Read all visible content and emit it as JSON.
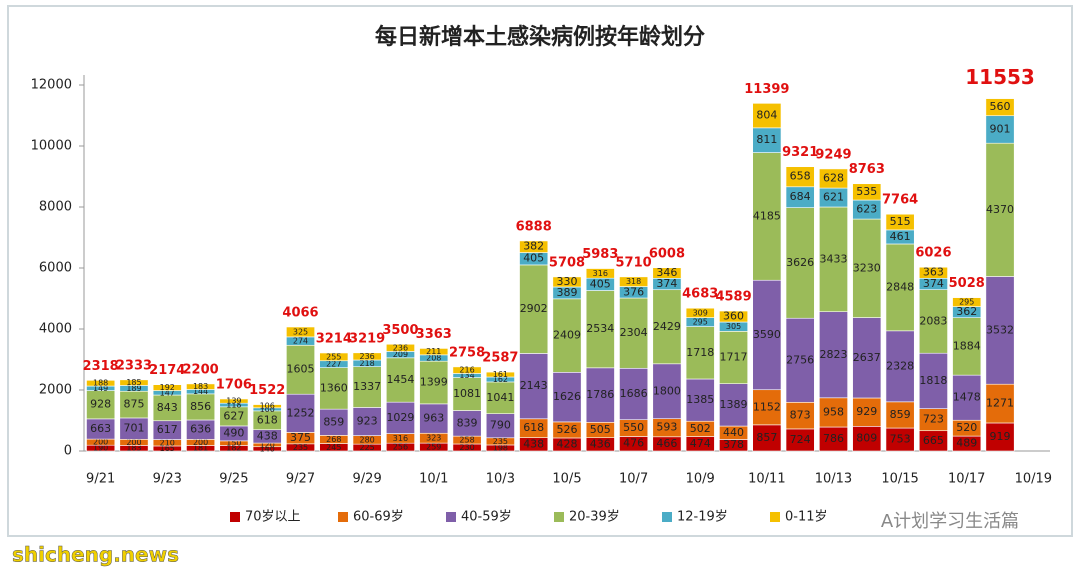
{
  "chart_data": {
    "type": "stacked_bar",
    "title": "每日新增本土感染病例按年龄划分",
    "categories": [
      "9/21",
      null,
      "9/23",
      null,
      "9/25",
      null,
      "9/27",
      null,
      "9/29",
      null,
      "10/1",
      null,
      "10/3",
      null,
      "10/5",
      null,
      "10/7",
      null,
      "10/9",
      null,
      "10/11",
      null,
      "10/13",
      null,
      "10/15",
      null,
      "10/17",
      null,
      "10/19"
    ],
    "series": [
      {
        "name": "70岁以上",
        "color": "#c00000",
        "values": [
          190,
          183,
          165,
          181,
          182,
          140,
          235,
          245,
          225,
          256,
          259,
          230,
          198,
          438,
          428,
          436,
          476,
          466,
          474,
          378,
          857,
          724,
          786,
          809,
          753,
          665,
          489,
          919,
          null
        ]
      },
      {
        "name": "60-69岁",
        "color": "#e46c0a",
        "values": [
          200,
          200,
          210,
          200,
          150,
          120,
          375,
          268,
          280,
          316,
          323,
          258,
          235,
          618,
          526,
          505,
          550,
          593,
          502,
          440,
          1152,
          873,
          958,
          929,
          859,
          723,
          520,
          1271,
          null
        ]
      },
      {
        "name": "40-59岁",
        "color": "#7f5fa9",
        "values": [
          663,
          701,
          617,
          636,
          490,
          438,
          1252,
          859,
          923,
          1029,
          963,
          839,
          790,
          2143,
          1626,
          1786,
          1686,
          1800,
          1385,
          1389,
          3590,
          2756,
          2823,
          2637,
          2328,
          1818,
          1478,
          3532,
          null
        ]
      },
      {
        "name": "20-39岁",
        "color": "#9bbb59",
        "values": [
          928,
          875,
          843,
          856,
          627,
          618,
          1605,
          1360,
          1337,
          1454,
          1399,
          1081,
          1041,
          2902,
          2409,
          2534,
          2304,
          2429,
          1718,
          1717,
          4185,
          3626,
          3433,
          3230,
          2848,
          2083,
          1884,
          4370,
          null
        ]
      },
      {
        "name": "12-19岁",
        "color": "#4bacc6",
        "values": [
          149,
          189,
          147,
          144,
          118,
          100,
          274,
          227,
          218,
          209,
          208,
          134,
          162,
          405,
          389,
          405,
          376,
          374,
          295,
          305,
          811,
          684,
          621,
          623,
          461,
          374,
          362,
          901,
          null
        ]
      },
      {
        "name": "0-11岁",
        "color": "#f5c000",
        "values": [
          188,
          185,
          192,
          183,
          139,
          106,
          325,
          255,
          236,
          236,
          211,
          216,
          161,
          382,
          330,
          316,
          318,
          346,
          309,
          360,
          804,
          658,
          628,
          535,
          515,
          363,
          295,
          560,
          null
        ]
      }
    ],
    "totals": [
      2318,
      2333,
      2174,
      2200,
      1706,
      1522,
      4066,
      3214,
      3219,
      3500,
      3363,
      2758,
      2587,
      6888,
      5708,
      5983,
      5710,
      6008,
      4683,
      4589,
      11399,
      9321,
      9249,
      8763,
      7764,
      6026,
      5028,
      11553,
      null
    ],
    "ylim": [
      0,
      12000
    ],
    "yticks": [
      0,
      2000,
      4000,
      6000,
      8000,
      10000,
      12000
    ],
    "legend": "bottom",
    "watermark": "A计划学习生活篇",
    "source": "shicheng.news"
  }
}
